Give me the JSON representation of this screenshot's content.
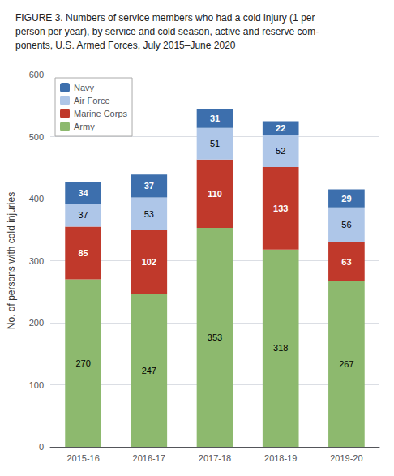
{
  "chart_data": {
    "type": "bar",
    "title": "FIGURE 3. Numbers of service members who had a cold injury (1 per\nperson per year), by service and cold season, active and reserve com-\nponents, U.S. Armed Forces, July 2015–June 2020",
    "categories": [
      "2015-16",
      "2016-17",
      "2017-18",
      "2018-19",
      "2019-20"
    ],
    "series": [
      {
        "name": "Army",
        "color": "#8db96e",
        "values": [
          270,
          247,
          353,
          318,
          267
        ]
      },
      {
        "name": "Marine Corps",
        "color": "#c0392b",
        "values": [
          85,
          102,
          110,
          133,
          63
        ]
      },
      {
        "name": "Air Force",
        "color": "#aec6e8",
        "values": [
          37,
          53,
          51,
          52,
          56
        ]
      },
      {
        "name": "Navy",
        "color": "#3d6fad",
        "values": [
          34,
          37,
          31,
          22,
          29
        ]
      }
    ],
    "ylabel": "No. of persons with cold injuries",
    "ylim": [
      0,
      600
    ],
    "yticks": [
      0,
      100,
      200,
      300,
      400,
      500,
      600
    ],
    "stacked": true,
    "data_labels": true,
    "grid": true,
    "legend": "upper left"
  }
}
